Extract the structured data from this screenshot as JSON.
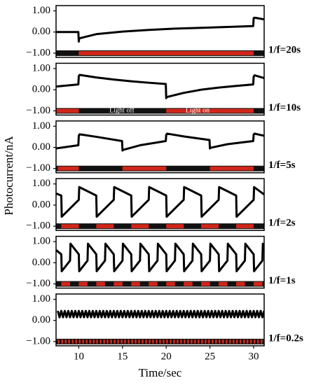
{
  "chart_data": [
    {
      "type": "line",
      "ylabel": "Photocurrent/nA",
      "label": "1/f=20s",
      "xlim": [
        7.4,
        31.2
      ],
      "ylim": [
        -1.2,
        1.25
      ],
      "yticks": [
        {
          "value": -1,
          "label": "−1.00"
        },
        {
          "value": 0,
          "label": "0.00"
        },
        {
          "value": 1,
          "label": "1.00"
        }
      ],
      "color": "#000000",
      "light_color": "#d0261a",
      "x": [
        7.4,
        9.95,
        10.0,
        10.05,
        12,
        15,
        18,
        21,
        24,
        27,
        29.95,
        30.0,
        30.1,
        31.2
      ],
      "values": [
        0.0,
        0.0,
        -0.45,
        -0.3,
        -0.1,
        0.02,
        0.1,
        0.16,
        0.2,
        0.24,
        0.28,
        0.65,
        0.68,
        0.6
      ],
      "light_on": [
        [
          10,
          30
        ]
      ]
    },
    {
      "type": "line",
      "label": "1/f=10s",
      "annotations": [
        "Light off",
        "Light on"
      ],
      "xlim": [
        7.4,
        31.2
      ],
      "ylim": [
        -1.2,
        1.25
      ],
      "yticks": [
        {
          "value": -1,
          "label": "−1.00"
        },
        {
          "value": 0,
          "label": "0.00"
        },
        {
          "value": 1,
          "label": "1.00"
        }
      ],
      "color": "#000000",
      "light_color": "#d0261a",
      "x": [
        7.4,
        9.95,
        10.0,
        10.1,
        12,
        14,
        16,
        18,
        19.95,
        20.0,
        20.05,
        22,
        24,
        26,
        28,
        29.95,
        30.0,
        30.1,
        31.2
      ],
      "values": [
        0.15,
        0.25,
        0.65,
        0.7,
        0.58,
        0.48,
        0.4,
        0.33,
        0.27,
        -0.4,
        -0.35,
        -0.15,
        0.0,
        0.1,
        0.18,
        0.25,
        0.62,
        0.68,
        0.55
      ],
      "light_on": [
        [
          7.4,
          10
        ],
        [
          20,
          30
        ]
      ]
    },
    {
      "type": "line",
      "label": "1/f=5s",
      "xlim": [
        7.4,
        31.2
      ],
      "ylim": [
        -1.2,
        1.25
      ],
      "yticks": [
        {
          "value": -1,
          "label": "−1.00"
        },
        {
          "value": 0,
          "label": "0.00"
        },
        {
          "value": 1,
          "label": "1.00"
        }
      ],
      "color": "#000000",
      "light_color": "#d0261a",
      "x": [
        7.4,
        9.95,
        10.0,
        10.1,
        12,
        14.95,
        15.0,
        15.05,
        17,
        19.95,
        20.0,
        20.1,
        22,
        24.95,
        25.0,
        25.05,
        27,
        29.95,
        30.0,
        30.1,
        31.2
      ],
      "values": [
        -0.05,
        0.1,
        0.55,
        0.62,
        0.5,
        0.3,
        -0.15,
        -0.12,
        0.1,
        0.3,
        0.6,
        0.65,
        0.52,
        0.35,
        -0.05,
        -0.02,
        0.15,
        0.3,
        0.6,
        0.65,
        0.55
      ],
      "light_on": [
        [
          7.6,
          10
        ],
        [
          15,
          20
        ],
        [
          25,
          30
        ]
      ]
    },
    {
      "type": "line",
      "label": "1/f=2s",
      "xlim": [
        7.4,
        31.2
      ],
      "ylim": [
        -1.2,
        1.25
      ],
      "yticks": [
        {
          "value": -1,
          "label": "−1.00"
        },
        {
          "value": 0,
          "label": "0.00"
        },
        {
          "value": 1,
          "label": "1.00"
        }
      ],
      "color": "#000000",
      "light_color": "#d0261a",
      "x": [
        7.4,
        8,
        8.05,
        10,
        10.05,
        12,
        12.05,
        14,
        14.05,
        16,
        16.05,
        18,
        18.05,
        20,
        20.05,
        22,
        22.05,
        24,
        24.05,
        26,
        26.05,
        28,
        28.05,
        30,
        30.05,
        31.2
      ],
      "values": [
        0.55,
        0.45,
        -0.55,
        0.25,
        0.85,
        0.45,
        -0.55,
        0.25,
        0.85,
        0.45,
        -0.55,
        0.25,
        0.85,
        0.45,
        -0.55,
        0.25,
        0.85,
        0.45,
        -0.55,
        0.25,
        0.85,
        0.45,
        -0.55,
        0.25,
        0.85,
        0.5
      ],
      "light_on": [
        [
          8,
          10
        ],
        [
          12,
          14
        ],
        [
          16,
          18
        ],
        [
          20,
          22
        ],
        [
          24,
          26
        ],
        [
          28,
          30
        ]
      ]
    },
    {
      "type": "line",
      "label": "1/f=1s",
      "xlim": [
        7.4,
        31.2
      ],
      "ylim": [
        -1.2,
        1.25
      ],
      "yticks": [
        {
          "value": -1,
          "label": "−1.00"
        },
        {
          "value": 0,
          "label": "0.00"
        },
        {
          "value": 1,
          "label": "1.00"
        }
      ],
      "color": "#000000",
      "light_color": "#d0261a",
      "x": [
        7.4,
        8,
        8.05,
        9,
        9.05,
        10,
        10.05,
        11,
        11.05,
        12,
        12.05,
        13,
        13.05,
        14,
        14.05,
        15,
        15.05,
        16,
        16.05,
        17,
        17.05,
        18,
        18.05,
        19,
        19.05,
        20,
        20.05,
        21,
        21.05,
        22,
        22.05,
        23,
        23.05,
        24,
        24.05,
        25,
        25.05,
        26,
        26.05,
        27,
        27.05,
        28,
        28.05,
        29,
        29.05,
        30,
        30.05,
        31,
        31.05,
        31.2
      ],
      "values": [
        0.6,
        0.4,
        -0.4,
        0.1,
        0.9,
        0.4,
        -0.4,
        0.1,
        0.9,
        0.4,
        -0.4,
        0.1,
        0.9,
        0.4,
        -0.4,
        0.1,
        0.9,
        0.4,
        -0.4,
        0.1,
        0.9,
        0.4,
        -0.4,
        0.1,
        0.9,
        0.4,
        -0.4,
        0.1,
        0.9,
        0.4,
        -0.4,
        0.1,
        0.9,
        0.4,
        -0.4,
        0.1,
        0.9,
        0.4,
        -0.4,
        0.1,
        0.9,
        0.4,
        -0.4,
        0.1,
        0.9,
        0.4,
        -0.4,
        0.1,
        0.9,
        0.8
      ],
      "light_on": [
        [
          8,
          9
        ],
        [
          10,
          11
        ],
        [
          12,
          13
        ],
        [
          14,
          15
        ],
        [
          16,
          17
        ],
        [
          18,
          19
        ],
        [
          20,
          21
        ],
        [
          22,
          23
        ],
        [
          24,
          25
        ],
        [
          26,
          27
        ],
        [
          28,
          29
        ],
        [
          30,
          31
        ]
      ]
    },
    {
      "type": "line",
      "label": "1/f=0.2s",
      "xlabel": "Time/sec",
      "xlim": [
        7.4,
        31.2
      ],
      "ylim": [
        -1.2,
        1.25
      ],
      "xticks": [
        10,
        15,
        20,
        25,
        30
      ],
      "yticks": [
        {
          "value": -1,
          "label": "−1.00"
        },
        {
          "value": 0,
          "label": "0.00"
        },
        {
          "value": 1,
          "label": "1.00"
        }
      ],
      "color": "#000000",
      "light_color": "#d0261a",
      "x": [
        7.6,
        7.8,
        8,
        8.2,
        8.4,
        8.6,
        8.8,
        9,
        9.2,
        9.4,
        9.6,
        9.8,
        10,
        10.2,
        10.4,
        10.6,
        10.8,
        11,
        11.2,
        11.4,
        11.6,
        11.8,
        12,
        12.2,
        12.4,
        12.6,
        12.8,
        13,
        13.2,
        13.4,
        13.6,
        13.8,
        14,
        14.2,
        14.4,
        14.6,
        14.8,
        15,
        15.2,
        15.4,
        15.6,
        15.8,
        16,
        16.2,
        16.4,
        16.6,
        16.8,
        17,
        17.2,
        17.4,
        17.6,
        17.8,
        18,
        18.2,
        18.4,
        18.6,
        18.8,
        19,
        19.2,
        19.4,
        19.6,
        19.8,
        20,
        20.2,
        20.4,
        20.6,
        20.8,
        21,
        21.2,
        21.4,
        21.6,
        21.8,
        22,
        22.2,
        22.4,
        22.6,
        22.8,
        23,
        23.2,
        23.4,
        23.6,
        23.8,
        24,
        24.2,
        24.4,
        24.6,
        24.8,
        25,
        25.2,
        25.4,
        25.6,
        25.8,
        26,
        26.2,
        26.4,
        26.6,
        26.8,
        27,
        27.2,
        27.4,
        27.6,
        27.8,
        28,
        28.2,
        28.4,
        28.6,
        28.8,
        29,
        29.2,
        29.4,
        29.6,
        29.8,
        30,
        30.2,
        30.4,
        30.6,
        30.8,
        31,
        31.2
      ],
      "values": [
        0.45,
        0.15,
        0.45,
        0.15,
        0.45,
        0.15,
        0.45,
        0.15,
        0.45,
        0.15,
        0.45,
        0.15,
        0.45,
        0.15,
        0.45,
        0.15,
        0.45,
        0.15,
        0.45,
        0.15,
        0.45,
        0.15,
        0.45,
        0.15,
        0.45,
        0.15,
        0.45,
        0.15,
        0.45,
        0.15,
        0.45,
        0.15,
        0.45,
        0.15,
        0.45,
        0.15,
        0.45,
        0.15,
        0.45,
        0.15,
        0.45,
        0.15,
        0.45,
        0.15,
        0.45,
        0.15,
        0.45,
        0.15,
        0.45,
        0.15,
        0.45,
        0.15,
        0.45,
        0.15,
        0.45,
        0.15,
        0.45,
        0.15,
        0.45,
        0.15,
        0.45,
        0.15,
        0.45,
        0.15,
        0.45,
        0.15,
        0.45,
        0.15,
        0.45,
        0.15,
        0.45,
        0.15,
        0.45,
        0.15,
        0.45,
        0.15,
        0.45,
        0.15,
        0.45,
        0.15,
        0.45,
        0.15,
        0.45,
        0.15,
        0.45,
        0.15,
        0.45,
        0.15,
        0.45,
        0.15,
        0.45,
        0.15,
        0.45,
        0.15,
        0.45,
        0.15,
        0.45,
        0.15,
        0.45,
        0.15,
        0.45,
        0.15,
        0.45,
        0.15,
        0.45,
        0.15,
        0.45,
        0.15,
        0.45,
        0.15,
        0.45,
        0.15,
        0.45,
        0.15,
        0.45,
        0.15,
        0.45,
        0.15,
        0.45
      ],
      "light_on": [
        [
          7.6,
          7.8
        ],
        [
          8,
          8.2
        ],
        [
          8.4,
          8.6
        ],
        [
          8.8,
          9
        ],
        [
          9.2,
          9.4
        ],
        [
          9.6,
          9.8
        ],
        [
          10,
          10.2
        ],
        [
          10.4,
          10.6
        ],
        [
          10.8,
          11
        ],
        [
          11.2,
          11.4
        ],
        [
          11.6,
          11.8
        ],
        [
          12,
          12.2
        ],
        [
          12.4,
          12.6
        ],
        [
          12.8,
          13
        ],
        [
          13.2,
          13.4
        ],
        [
          13.6,
          13.8
        ],
        [
          14,
          14.2
        ],
        [
          14.4,
          14.6
        ],
        [
          14.8,
          15
        ],
        [
          15.2,
          15.4
        ],
        [
          15.6,
          15.8
        ],
        [
          16,
          16.2
        ],
        [
          16.4,
          16.6
        ],
        [
          16.8,
          17
        ],
        [
          17.2,
          17.4
        ],
        [
          17.6,
          17.8
        ],
        [
          18,
          18.2
        ],
        [
          18.4,
          18.6
        ],
        [
          18.8,
          19
        ],
        [
          19.2,
          19.4
        ],
        [
          19.6,
          19.8
        ],
        [
          20,
          20.2
        ],
        [
          20.4,
          20.6
        ],
        [
          20.8,
          21
        ],
        [
          21.2,
          21.4
        ],
        [
          21.6,
          21.8
        ],
        [
          22,
          22.2
        ],
        [
          22.4,
          22.6
        ],
        [
          22.8,
          23
        ],
        [
          23.2,
          23.4
        ],
        [
          23.6,
          23.8
        ],
        [
          24,
          24.2
        ],
        [
          24.4,
          24.6
        ],
        [
          24.8,
          25
        ],
        [
          25.2,
          25.4
        ],
        [
          25.6,
          25.8
        ],
        [
          26,
          26.2
        ],
        [
          26.4,
          26.6
        ],
        [
          26.8,
          27
        ],
        [
          27.2,
          27.4
        ],
        [
          27.6,
          27.8
        ],
        [
          28,
          28.2
        ],
        [
          28.4,
          28.6
        ],
        [
          28.8,
          29
        ],
        [
          29.2,
          29.4
        ],
        [
          29.6,
          29.8
        ],
        [
          30,
          30.2
        ],
        [
          30.4,
          30.6
        ],
        [
          30.8,
          31
        ]
      ]
    }
  ]
}
